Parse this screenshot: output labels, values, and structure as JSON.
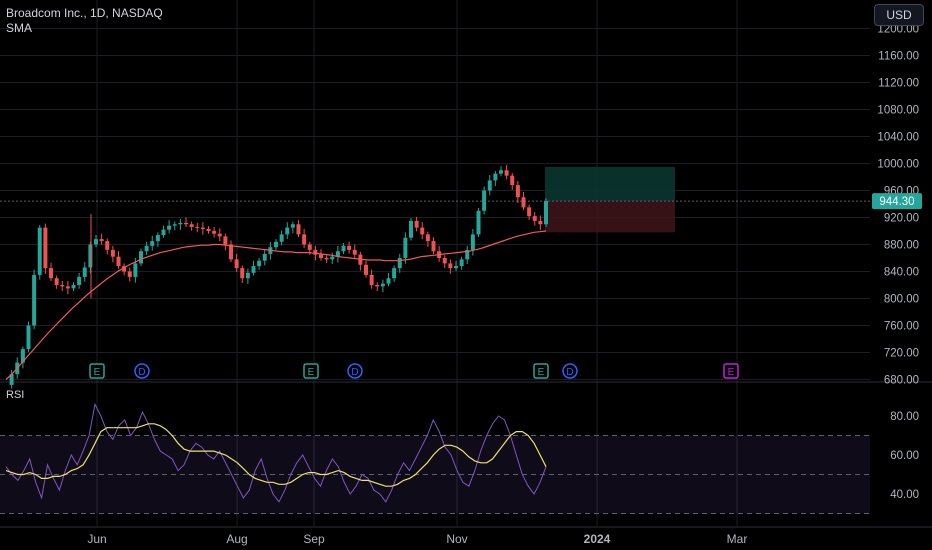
{
  "header": {
    "symbol_line": "Broadcom Inc., 1D, NASDAQ",
    "indicator": "SMA"
  },
  "currency_button": {
    "label": "USD"
  },
  "rsi_pane": {
    "label": "RSI"
  },
  "colors": {
    "up": "#26a69a",
    "down": "#ef5350",
    "sma": "#f05a5a",
    "rsi": "#7e57c2",
    "rsi_ma": "#e8e36a",
    "price_tag": "#26a69a",
    "earnings": "#26a69a",
    "dividend": "#2962ff",
    "future_earnings": "#c71ee0"
  },
  "chart_data": [
    {
      "type": "candlestick",
      "title": "Broadcom Inc., 1D, NASDAQ",
      "price_axis": [
        "1200.00",
        "1160.00",
        "1120.00",
        "1080.00",
        "1040.00",
        "1000.00",
        "960.00",
        "920.00",
        "880.00",
        "840.00",
        "800.00",
        "760.00",
        "720.00",
        "680.00"
      ],
      "ylim": [
        680,
        1200
      ],
      "time_axis": [
        "Jun",
        "Aug",
        "Sep",
        "Nov",
        "2024",
        "Mar"
      ],
      "current_price": "944.30",
      "series": [
        {
          "name": "Broadcom Inc.",
          "close_path": [
            672,
            688,
            705,
            725,
            760,
            835,
            905,
            845,
            830,
            820,
            818,
            815,
            820,
            832,
            846,
            880,
            888,
            885,
            872,
            862,
            848,
            840,
            832,
            852,
            870,
            878,
            885,
            894,
            902,
            908,
            910,
            912,
            910,
            906,
            905,
            903,
            900,
            896,
            892,
            880,
            858,
            845,
            830,
            838,
            848,
            856,
            866,
            876,
            884,
            895,
            905,
            910,
            895,
            880,
            872,
            865,
            860,
            858,
            862,
            870,
            878,
            872,
            865,
            850,
            835,
            820,
            818,
            822,
            830,
            845,
            860,
            890,
            915,
            905,
            895,
            885,
            870,
            860,
            852,
            845,
            848,
            858,
            872,
            895,
            930,
            960,
            975,
            985,
            990,
            982,
            968,
            950,
            935,
            922,
            915,
            910,
            944.3
          ]
        },
        {
          "name": "SMA",
          "path": [
            680,
            688,
            698,
            708,
            718,
            728,
            738,
            748,
            757,
            766,
            775,
            784,
            792,
            800,
            808,
            815,
            822,
            829,
            835,
            841,
            846,
            851,
            855,
            859,
            862,
            865,
            868,
            870,
            872,
            874,
            876,
            877,
            878,
            879,
            879,
            880,
            880,
            879,
            878,
            877,
            876,
            875,
            874,
            873,
            872,
            871,
            870,
            869,
            869,
            868,
            868,
            868,
            867,
            866,
            865,
            864,
            862,
            861,
            860,
            859,
            858,
            857,
            857,
            857,
            856,
            856,
            856,
            857,
            858,
            860,
            862,
            863,
            864,
            865,
            866,
            867,
            868,
            869,
            870,
            872,
            874,
            877,
            880,
            883,
            886,
            889,
            892,
            894,
            896,
            898,
            899,
            900
          ]
        }
      ],
      "trade_box": {
        "entry": 944.3,
        "target": 995,
        "stop": 898
      },
      "events": [
        {
          "type": "earnings",
          "label": "E",
          "at": "Jun"
        },
        {
          "type": "dividend",
          "label": "D",
          "at": "Jun"
        },
        {
          "type": "earnings",
          "label": "E",
          "at": "Sep"
        },
        {
          "type": "dividend",
          "label": "D",
          "at": "Sep"
        },
        {
          "type": "earnings",
          "label": "E",
          "at": "Dec"
        },
        {
          "type": "dividend",
          "label": "D",
          "at": "Dec"
        },
        {
          "type": "future_earnings",
          "label": "E",
          "at": "Mar"
        }
      ]
    },
    {
      "type": "line",
      "title": "RSI",
      "axis": [
        "80.00",
        "60.00",
        "40.00"
      ],
      "ylim": [
        28,
        92
      ],
      "bands": [
        30,
        70
      ],
      "midline": 50,
      "series": [
        {
          "name": "RSI",
          "values": [
            54,
            50,
            47,
            52,
            58,
            46,
            38,
            55,
            48,
            42,
            52,
            60,
            55,
            62,
            70,
            86,
            80,
            72,
            68,
            75,
            78,
            70,
            74,
            82,
            76,
            68,
            62,
            60,
            58,
            52,
            55,
            62,
            66,
            64,
            60,
            58,
            62,
            56,
            50,
            44,
            38,
            42,
            52,
            58,
            48,
            40,
            36,
            42,
            50,
            56,
            60,
            54,
            48,
            44,
            52,
            58,
            54,
            46,
            40,
            44,
            50,
            48,
            42,
            40,
            36,
            42,
            50,
            56,
            52,
            58,
            64,
            70,
            78,
            72,
            64,
            60,
            52,
            46,
            44,
            52,
            62,
            70,
            76,
            80,
            78,
            70,
            60,
            50,
            44,
            40,
            46,
            54
          ]
        },
        {
          "name": "RSI MA",
          "values": [
            52,
            51,
            50,
            50,
            51,
            50,
            48,
            48,
            49,
            49,
            50,
            52,
            53,
            55,
            60,
            66,
            72,
            74,
            74,
            74,
            74,
            74,
            74,
            75,
            76,
            76,
            75,
            73,
            70,
            66,
            63,
            62,
            62,
            62,
            62,
            62,
            61,
            60,
            58,
            56,
            53,
            50,
            48,
            47,
            46,
            46,
            45,
            45,
            46,
            48,
            50,
            51,
            51,
            50,
            50,
            51,
            52,
            51,
            49,
            48,
            47,
            47,
            46,
            45,
            44,
            44,
            45,
            47,
            48,
            50,
            53,
            56,
            60,
            63,
            65,
            65,
            64,
            62,
            59,
            57,
            56,
            56,
            58,
            62,
            66,
            70,
            72,
            72,
            70,
            66,
            60,
            54
          ]
        }
      ]
    }
  ]
}
